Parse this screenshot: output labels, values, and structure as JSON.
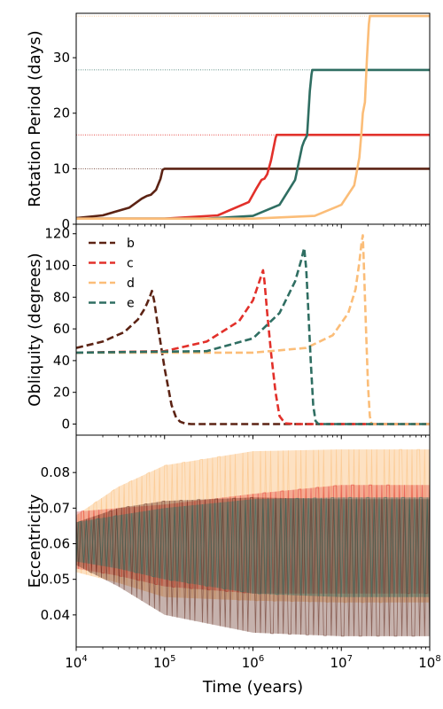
{
  "chart_data": [
    {
      "type": "line",
      "xscale": "log",
      "xlim": [
        10000,
        100000000
      ],
      "ylim": [
        0,
        38
      ],
      "ylabel": "Rotation Period (days)",
      "yticks": [
        "0",
        "10",
        "20",
        "30"
      ],
      "ytick_values": [
        0,
        10,
        20,
        30
      ],
      "series": [
        {
          "color": "#5c2314",
          "x": [
            10000,
            20000,
            40000,
            55000,
            63000,
            70000,
            80000,
            90000,
            95000,
            100000,
            1000000,
            100000000
          ],
          "y": [
            1.1,
            1.6,
            3.0,
            4.6,
            5.1,
            5.3,
            6.2,
            8.2,
            9.8,
            10.0,
            10.0,
            10.0
          ]
        },
        {
          "color": "#e2302a",
          "x": [
            10000,
            100000,
            400000,
            900000,
            1100000,
            1250000,
            1350000,
            1450000,
            1600000,
            1800000,
            1850000,
            10000000,
            100000000
          ],
          "y": [
            1.0,
            1.0,
            1.6,
            4.0,
            6.5,
            8.0,
            8.2,
            9.0,
            11.5,
            15.5,
            16.1,
            16.1,
            16.1
          ]
        },
        {
          "color": "#2f6e62",
          "x": [
            10000,
            300000,
            1000000,
            2000000,
            3000000,
            3600000,
            3800000,
            4100000,
            4400000,
            4600000,
            4700000,
            100000000
          ],
          "y": [
            1.0,
            1.0,
            1.5,
            3.5,
            8.0,
            14.0,
            15.0,
            16.0,
            24.0,
            27.0,
            27.8,
            27.8
          ]
        },
        {
          "color": "#fbbd78",
          "x": [
            10000,
            1000000,
            5000000,
            10000000,
            14000000,
            16000000,
            17000000,
            17500000,
            18500000,
            19500000,
            20500000,
            21000000,
            100000000
          ],
          "y": [
            1.0,
            1.0,
            1.5,
            3.5,
            7.0,
            12.0,
            17.0,
            20.0,
            22.0,
            30.0,
            36.0,
            37.5,
            37.5
          ]
        }
      ],
      "reference_lines": [
        {
          "color": "#5c2314",
          "y": 10.0
        },
        {
          "color": "#e2302a",
          "y": 16.1
        },
        {
          "color": "#2f6e62",
          "y": 27.8
        },
        {
          "color": "#fbbd78",
          "y": 37.5
        }
      ]
    },
    {
      "type": "line",
      "xscale": "log",
      "xlim": [
        10000,
        100000000
      ],
      "ylim": [
        -7,
        126
      ],
      "ylabel": "Obliquity (degrees)",
      "yticks": [
        "0",
        "20",
        "40",
        "60",
        "80",
        "100",
        "120"
      ],
      "ytick_values": [
        0,
        20,
        40,
        60,
        80,
        100,
        120
      ],
      "legend": {
        "location": "upper-left",
        "entries": [
          "b",
          "c",
          "d",
          "e"
        ]
      },
      "series": [
        {
          "name": "b",
          "color": "#5c2314",
          "x": [
            10000,
            20000,
            35000,
            50000,
            60000,
            68000,
            72000,
            76000,
            85000,
            100000,
            120000,
            135000,
            150000,
            170000,
            200000,
            100000000
          ],
          "y": [
            48,
            52,
            58,
            66,
            73,
            80,
            84,
            78,
            60,
            35,
            12,
            4,
            1.5,
            0.4,
            0,
            0
          ]
        },
        {
          "name": "c",
          "color": "#e2302a",
          "x": [
            10000,
            100000,
            300000,
            700000,
            1000000,
            1200000,
            1300000,
            1350000,
            1450000,
            1600000,
            1800000,
            2000000,
            2300000,
            3000000,
            100000000
          ],
          "y": [
            45,
            46,
            52,
            65,
            78,
            91,
            97,
            90,
            70,
            45,
            20,
            5,
            0.5,
            0,
            0
          ]
        },
        {
          "name": "d",
          "color": "#fbbd78",
          "x": [
            10000,
            1000000,
            4000000,
            8000000,
            12000000,
            14500000,
            16000000,
            17000000,
            17500000,
            18000000,
            19000000,
            20000000,
            21000000,
            22000000,
            100000000
          ],
          "y": [
            45,
            45,
            48,
            56,
            70,
            85,
            102,
            115,
            119,
            100,
            60,
            25,
            5,
            0,
            0
          ]
        },
        {
          "name": "e",
          "color": "#2f6e62",
          "x": [
            10000,
            300000,
            1000000,
            2000000,
            3000000,
            3500000,
            3800000,
            4000000,
            4200000,
            4500000,
            4800000,
            5100000,
            5500000,
            100000000
          ],
          "y": [
            45,
            46,
            54,
            70,
            90,
            103,
            111,
            98,
            75,
            40,
            12,
            2,
            0,
            0
          ]
        }
      ]
    },
    {
      "type": "area",
      "xscale": "log",
      "xlim": [
        10000,
        100000000
      ],
      "ylim": [
        0.031,
        0.0905
      ],
      "ylabel": "Eccentricity",
      "xlabel": "Time (years)",
      "yticks": [
        "0.04",
        "0.05",
        "0.06",
        "0.07",
        "0.08"
      ],
      "ytick_values": [
        0.04,
        0.05,
        0.06,
        0.07,
        0.08
      ],
      "xticks": [
        "10",
        "10",
        "10",
        "10",
        "10"
      ],
      "xtick_exponents": [
        "4",
        "5",
        "6",
        "7",
        "8"
      ],
      "xtick_values": [
        10000,
        100000,
        1000000,
        10000000,
        100000000
      ],
      "series": [
        {
          "color": "#fbbd78",
          "opacity": 0.45,
          "x": [
            10000,
            30000,
            100000,
            1000000,
            10000000,
            100000000
          ],
          "upper": [
            0.068,
            0.076,
            0.082,
            0.086,
            0.0865,
            0.0865
          ],
          "lower": [
            0.052,
            0.049,
            0.045,
            0.044,
            0.0435,
            0.0435
          ]
        },
        {
          "color": "#e2302a",
          "opacity": 0.3,
          "x": [
            10000,
            30000,
            100000,
            1000000,
            10000000,
            100000000
          ],
          "upper": [
            0.069,
            0.07,
            0.071,
            0.074,
            0.0765,
            0.0765
          ],
          "lower": [
            0.053,
            0.051,
            0.048,
            0.046,
            0.046,
            0.046
          ]
        },
        {
          "color": "#5c2314",
          "opacity": 0.35,
          "x": [
            10000,
            30000,
            100000,
            1000000,
            10000000,
            100000000
          ],
          "upper": [
            0.066,
            0.07,
            0.072,
            0.073,
            0.0725,
            0.0725
          ],
          "lower": [
            0.054,
            0.048,
            0.04,
            0.035,
            0.034,
            0.034
          ]
        },
        {
          "color": "#2f6e62",
          "opacity": 0.35,
          "x": [
            10000,
            30000,
            100000,
            1000000,
            10000000,
            100000000
          ],
          "upper": [
            0.066,
            0.068,
            0.07,
            0.0725,
            0.073,
            0.073
          ],
          "lower": [
            0.055,
            0.053,
            0.05,
            0.046,
            0.045,
            0.045
          ]
        }
      ]
    }
  ]
}
